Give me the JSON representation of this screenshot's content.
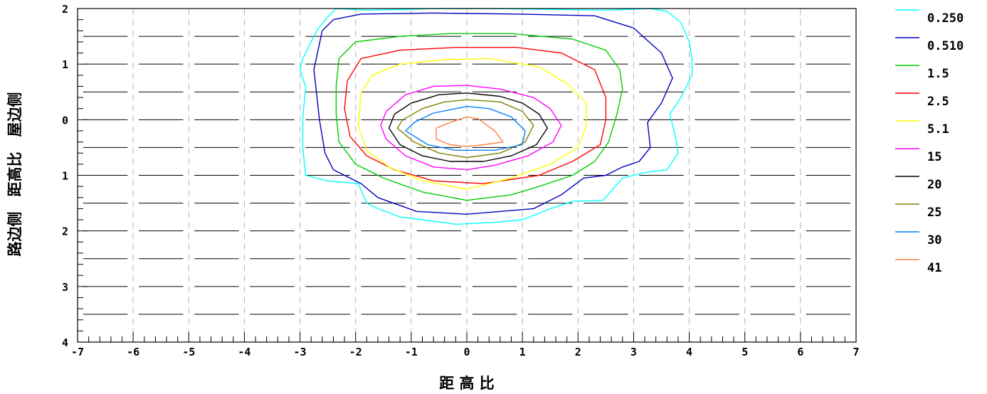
{
  "chart_data": {
    "type": "contour",
    "title": "",
    "xlabel": "距 高 比",
    "ylabel_left": "路边侧　距高比　屋边侧",
    "xlim": [
      -7,
      7
    ],
    "ylim": [
      -2,
      4
    ],
    "y_inverted": true,
    "x_ticks": [
      "-7",
      "-6",
      "-5",
      "-4",
      "-3",
      "-2",
      "-1",
      "0",
      "1",
      "2",
      "3",
      "4",
      "5",
      "6",
      "7"
    ],
    "y_tick_labels": [
      {
        "v": -2,
        "t": "2"
      },
      {
        "v": -1,
        "t": "1"
      },
      {
        "v": 0,
        "t": "0"
      },
      {
        "v": 1,
        "t": "1"
      },
      {
        "v": 2,
        "t": "2"
      },
      {
        "v": 3,
        "t": "3"
      },
      {
        "v": 4,
        "t": "4"
      }
    ],
    "grid": {
      "vertical_dashed": true,
      "horizontal_segments": true
    },
    "legend_position": "right",
    "series": [
      {
        "name": "0.250",
        "color": "#00ffff",
        "points": [
          [
            -2.35,
            -2.0
          ],
          [
            -1.8,
            -1.97
          ],
          [
            -0.5,
            -2.0
          ],
          [
            0.5,
            -2.0
          ],
          [
            2.5,
            -1.97
          ],
          [
            3.3,
            -2.0
          ],
          [
            3.6,
            -1.95
          ],
          [
            3.85,
            -1.75
          ],
          [
            4.0,
            -1.4
          ],
          [
            4.05,
            -1.1
          ],
          [
            4.05,
            -0.8
          ],
          [
            3.85,
            -0.4
          ],
          [
            3.65,
            -0.1
          ],
          [
            3.75,
            0.3
          ],
          [
            3.8,
            0.6
          ],
          [
            3.6,
            0.9
          ],
          [
            3.2,
            0.95
          ],
          [
            2.8,
            1.05
          ],
          [
            2.45,
            1.45
          ],
          [
            1.9,
            1.47
          ],
          [
            1.5,
            1.6
          ],
          [
            1.0,
            1.8
          ],
          [
            0.45,
            1.85
          ],
          [
            -0.2,
            1.88
          ],
          [
            -0.8,
            1.8
          ],
          [
            -1.2,
            1.75
          ],
          [
            -1.6,
            1.6
          ],
          [
            -1.8,
            1.5
          ],
          [
            -1.95,
            1.15
          ],
          [
            -2.5,
            1.1
          ],
          [
            -2.9,
            1.0
          ],
          [
            -2.95,
            0.5
          ],
          [
            -2.95,
            0.0
          ],
          [
            -2.9,
            -0.6
          ],
          [
            -3.0,
            -0.9
          ],
          [
            -2.95,
            -1.1
          ],
          [
            -2.7,
            -1.6
          ],
          [
            -2.5,
            -1.85
          ],
          [
            -2.35,
            -2.0
          ]
        ]
      },
      {
        "name": "0.510",
        "color": "#0000c0",
        "points": [
          [
            -2.6,
            -1.6
          ],
          [
            -2.4,
            -1.8
          ],
          [
            -1.9,
            -1.9
          ],
          [
            -0.6,
            -1.92
          ],
          [
            0.9,
            -1.9
          ],
          [
            2.3,
            -1.87
          ],
          [
            3.0,
            -1.65
          ],
          [
            3.5,
            -1.2
          ],
          [
            3.7,
            -0.75
          ],
          [
            3.5,
            -0.3
          ],
          [
            3.25,
            0.05
          ],
          [
            3.3,
            0.5
          ],
          [
            3.1,
            0.75
          ],
          [
            2.8,
            0.85
          ],
          [
            2.5,
            1.0
          ],
          [
            2.1,
            1.05
          ],
          [
            1.7,
            1.35
          ],
          [
            1.2,
            1.6
          ],
          [
            0.0,
            1.7
          ],
          [
            -0.9,
            1.65
          ],
          [
            -1.6,
            1.4
          ],
          [
            -1.9,
            1.15
          ],
          [
            -2.4,
            0.9
          ],
          [
            -2.55,
            0.6
          ],
          [
            -2.65,
            0.0
          ],
          [
            -2.75,
            -0.9
          ],
          [
            -2.6,
            -1.6
          ]
        ]
      },
      {
        "name": "1.5",
        "color": "#00cc00",
        "points": [
          [
            -2.3,
            -1.1
          ],
          [
            -2.0,
            -1.4
          ],
          [
            -1.2,
            -1.5
          ],
          [
            -0.3,
            -1.55
          ],
          [
            0.8,
            -1.55
          ],
          [
            1.9,
            -1.45
          ],
          [
            2.5,
            -1.25
          ],
          [
            2.75,
            -0.9
          ],
          [
            2.8,
            -0.55
          ],
          [
            2.7,
            -0.1
          ],
          [
            2.55,
            0.4
          ],
          [
            2.3,
            0.75
          ],
          [
            1.9,
            1.0
          ],
          [
            1.3,
            1.2
          ],
          [
            0.8,
            1.35
          ],
          [
            0.0,
            1.45
          ],
          [
            -0.8,
            1.3
          ],
          [
            -1.5,
            1.05
          ],
          [
            -2.0,
            0.8
          ],
          [
            -2.3,
            0.4
          ],
          [
            -2.35,
            -0.1
          ],
          [
            -2.35,
            -0.6
          ],
          [
            -2.3,
            -1.1
          ]
        ]
      },
      {
        "name": "2.5",
        "color": "#ff0000",
        "points": [
          [
            -2.15,
            -0.7
          ],
          [
            -1.9,
            -1.1
          ],
          [
            -1.2,
            -1.25
          ],
          [
            -0.2,
            -1.3
          ],
          [
            0.9,
            -1.3
          ],
          [
            1.7,
            -1.2
          ],
          [
            2.3,
            -0.9
          ],
          [
            2.5,
            -0.4
          ],
          [
            2.5,
            0.0
          ],
          [
            2.4,
            0.45
          ],
          [
            1.9,
            0.75
          ],
          [
            1.3,
            1.0
          ],
          [
            0.3,
            1.15
          ],
          [
            -0.6,
            1.1
          ],
          [
            -1.3,
            0.9
          ],
          [
            -1.8,
            0.65
          ],
          [
            -2.1,
            0.3
          ],
          [
            -2.2,
            -0.2
          ],
          [
            -2.15,
            -0.7
          ]
        ]
      },
      {
        "name": "5.1",
        "color": "#ffff00",
        "points": [
          [
            -1.9,
            -0.5
          ],
          [
            -1.7,
            -0.8
          ],
          [
            -1.2,
            -1.0
          ],
          [
            -0.4,
            -1.08
          ],
          [
            0.4,
            -1.1
          ],
          [
            1.3,
            -0.95
          ],
          [
            1.8,
            -0.65
          ],
          [
            2.15,
            -0.3
          ],
          [
            2.15,
            0.1
          ],
          [
            2.0,
            0.5
          ],
          [
            1.5,
            0.8
          ],
          [
            0.8,
            1.05
          ],
          [
            0.0,
            1.25
          ],
          [
            -0.8,
            1.1
          ],
          [
            -1.4,
            0.85
          ],
          [
            -1.8,
            0.55
          ],
          [
            -1.95,
            0.1
          ],
          [
            -1.9,
            -0.5
          ]
        ]
      },
      {
        "name": "15",
        "color": "#ff00ff",
        "points": [
          [
            -1.45,
            -0.15
          ],
          [
            -1.1,
            -0.45
          ],
          [
            -0.6,
            -0.6
          ],
          [
            0.0,
            -0.62
          ],
          [
            0.6,
            -0.55
          ],
          [
            1.2,
            -0.4
          ],
          [
            1.5,
            -0.2
          ],
          [
            1.7,
            0.1
          ],
          [
            1.55,
            0.4
          ],
          [
            1.1,
            0.65
          ],
          [
            0.5,
            0.82
          ],
          [
            0.0,
            0.9
          ],
          [
            -0.6,
            0.85
          ],
          [
            -1.1,
            0.65
          ],
          [
            -1.45,
            0.35
          ],
          [
            -1.55,
            0.1
          ],
          [
            -1.45,
            -0.15
          ]
        ]
      },
      {
        "name": "20",
        "color": "#000000",
        "points": [
          [
            -1.3,
            -0.1
          ],
          [
            -1.0,
            -0.3
          ],
          [
            -0.5,
            -0.45
          ],
          [
            0.0,
            -0.48
          ],
          [
            0.6,
            -0.42
          ],
          [
            1.0,
            -0.3
          ],
          [
            1.3,
            -0.1
          ],
          [
            1.45,
            0.15
          ],
          [
            1.25,
            0.45
          ],
          [
            0.8,
            0.65
          ],
          [
            0.3,
            0.75
          ],
          [
            -0.3,
            0.75
          ],
          [
            -0.8,
            0.65
          ],
          [
            -1.2,
            0.45
          ],
          [
            -1.4,
            0.15
          ],
          [
            -1.3,
            -0.1
          ]
        ]
      },
      {
        "name": "25",
        "color": "#808000",
        "points": [
          [
            -1.15,
            0.0
          ],
          [
            -0.8,
            -0.2
          ],
          [
            -0.4,
            -0.32
          ],
          [
            0.0,
            -0.36
          ],
          [
            0.6,
            -0.32
          ],
          [
            1.0,
            -0.15
          ],
          [
            1.2,
            0.1
          ],
          [
            1.05,
            0.4
          ],
          [
            0.6,
            0.6
          ],
          [
            0.0,
            0.68
          ],
          [
            -0.5,
            0.6
          ],
          [
            -0.95,
            0.4
          ],
          [
            -1.25,
            0.15
          ],
          [
            -1.15,
            0.0
          ]
        ]
      },
      {
        "name": "30",
        "color": "#0080ff",
        "points": [
          [
            -0.95,
            0.05
          ],
          [
            -0.6,
            -0.12
          ],
          [
            -0.2,
            -0.2
          ],
          [
            0.0,
            -0.24
          ],
          [
            0.4,
            -0.2
          ],
          [
            0.8,
            -0.05
          ],
          [
            1.05,
            0.2
          ],
          [
            1.0,
            0.45
          ],
          [
            0.5,
            0.55
          ],
          [
            -0.2,
            0.55
          ],
          [
            -0.7,
            0.45
          ],
          [
            -1.1,
            0.2
          ],
          [
            -0.95,
            0.05
          ]
        ]
      },
      {
        "name": "41",
        "color": "#ff8040",
        "points": [
          [
            -0.55,
            0.15
          ],
          [
            -0.3,
            0.05
          ],
          [
            0.0,
            -0.05
          ],
          [
            0.2,
            -0.02
          ],
          [
            0.5,
            0.2
          ],
          [
            0.65,
            0.4
          ],
          [
            0.3,
            0.45
          ],
          [
            0.0,
            0.48
          ],
          [
            -0.3,
            0.45
          ],
          [
            -0.55,
            0.35
          ],
          [
            -0.55,
            0.15
          ]
        ]
      }
    ]
  }
}
